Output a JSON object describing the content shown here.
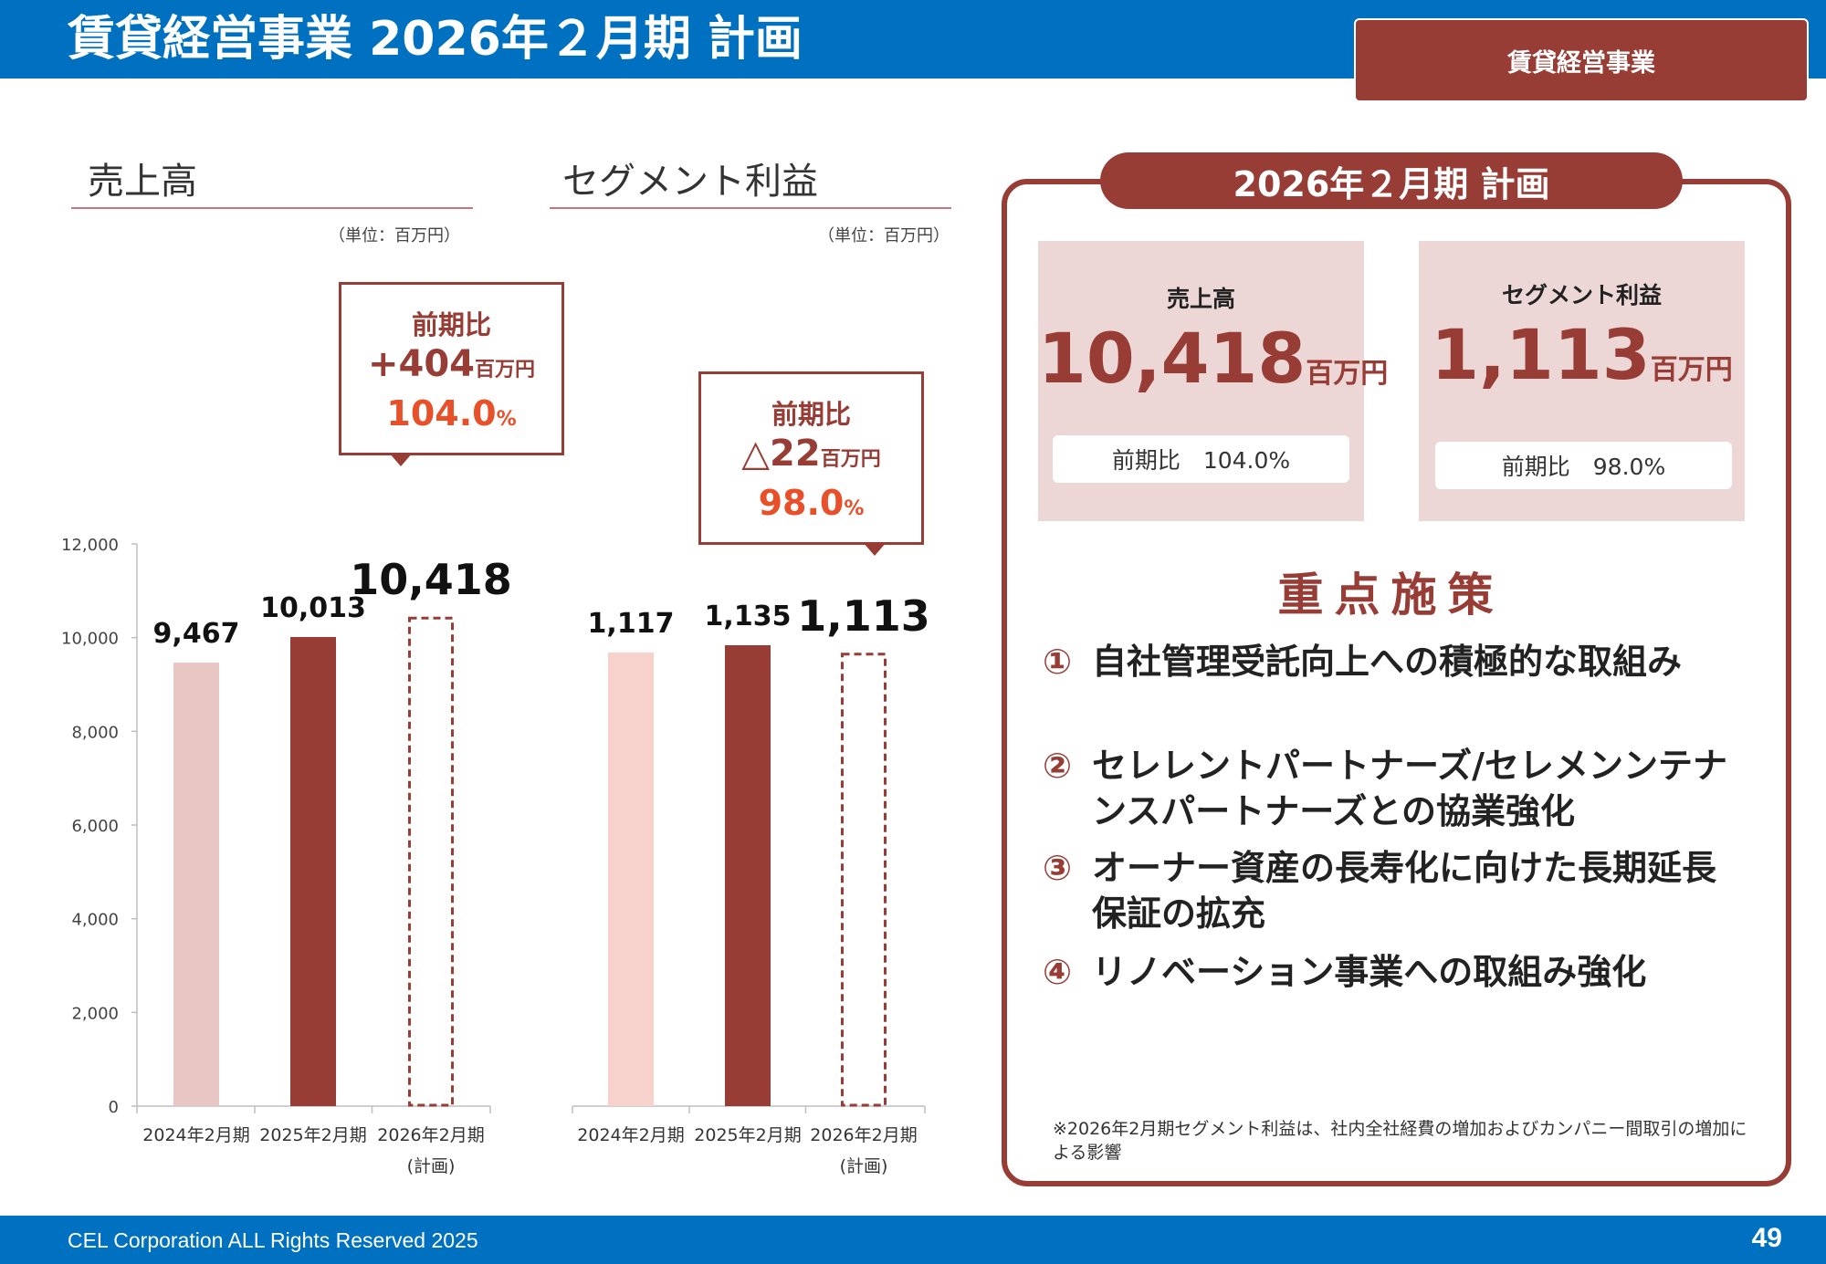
{
  "header": {
    "title": "賃貸経営事業 2026年２月期 計画",
    "segment_tag": "賃貸経営事業"
  },
  "footer": {
    "copyright": "CEL Corporation ALL Rights Reserved 2025",
    "page_number": "49"
  },
  "colors": {
    "header_blue": "#0070c0",
    "brand_red": "#973d36",
    "light_pink": "#e8c6c4",
    "highlight_orange": "#e8502a"
  },
  "sales_section": {
    "title": "売上高",
    "unit": "（単位：百万円）",
    "callout": {
      "label": "前期比",
      "diff": "+404",
      "diff_unit": "百万円",
      "pct": "104.0",
      "pct_unit": "%"
    }
  },
  "profit_section": {
    "title": "セグメント利益",
    "unit": "（単位：百万円）",
    "callout": {
      "label": "前期比",
      "diff": "△22",
      "diff_unit": "百万円",
      "pct": "98.0",
      "pct_unit": "%"
    }
  },
  "chart_data": [
    {
      "type": "bar",
      "title": "売上高",
      "categories": [
        "2024年2月期",
        "2025年2月期",
        "2026年2月期"
      ],
      "category_sub": [
        "",
        "",
        "(計画)"
      ],
      "values": [
        9467,
        10013,
        10418
      ],
      "value_labels": [
        "9,467",
        "10,013",
        "10,418"
      ],
      "styles": [
        "light",
        "solid",
        "dashed-outline"
      ],
      "ylim": [
        0,
        12000
      ],
      "yticks": [
        0,
        2000,
        4000,
        6000,
        8000,
        10000,
        12000
      ],
      "ytick_labels": [
        "0",
        "2,000",
        "4,000",
        "6,000",
        "8,000",
        "10,000",
        "12,000"
      ],
      "grid": false
    },
    {
      "type": "bar",
      "title": "セグメント利益",
      "categories": [
        "2024年2月期",
        "2025年2月期",
        "2026年2月期"
      ],
      "category_sub": [
        "",
        "",
        "(計画)"
      ],
      "values": [
        1117,
        1135,
        1113
      ],
      "value_labels": [
        "1,117",
        "1,135",
        "1,113"
      ],
      "styles": [
        "light",
        "solid",
        "dashed-outline"
      ],
      "grid": false
    }
  ],
  "plan_panel": {
    "heading": "2026年２月期 計画",
    "sales": {
      "label": "売上高",
      "value": "10,418",
      "unit": "百万円",
      "yoy": "前期比　104.0%"
    },
    "profit": {
      "label": "セグメント利益",
      "value": "1,113",
      "unit": "百万円",
      "yoy": "前期比　98.0%"
    },
    "measures_title": "重点施策",
    "measures": [
      {
        "num": "①",
        "text": "自社管理受託向上への積極的な取組み"
      },
      {
        "num": "②",
        "text": "セレレントパートナーズ/セレメンンテナンスパートナーズとの協業強化"
      },
      {
        "num": "③",
        "text": "オーナー資産の長寿化に向けた長期延長保証の拡充"
      },
      {
        "num": "④",
        "text": "リノベーション事業への取組み強化"
      }
    ],
    "note": "※2026年2月期セグメント利益は、社内全社経費の増加およびカンパニー間取引の増加による影響"
  }
}
